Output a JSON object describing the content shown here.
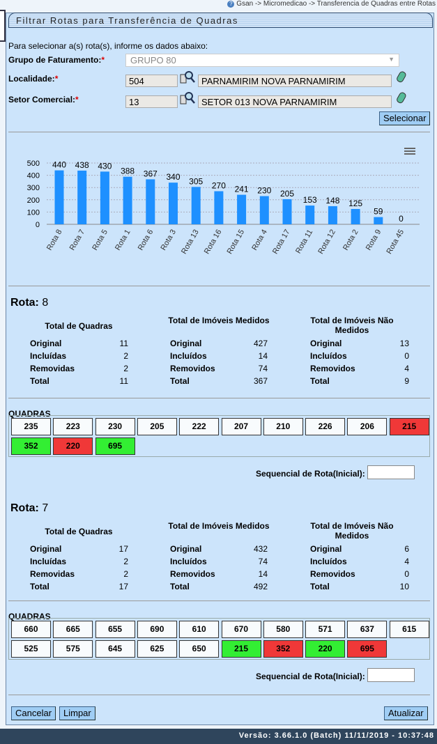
{
  "breadcrumb": "Gsan -> Micromedicao -> Transferencia de Quadras entre Rotas",
  "title": "Filtrar Rotas para Transferência de Quadras",
  "instructions": "Para selecionar a(s) rota(s), informe os dados abaixo:",
  "form": {
    "grupo_label": "Grupo de Faturamento:",
    "grupo_value": "GRUPO 80",
    "localidade_label": "Localidade:",
    "localidade_code": "504",
    "localidade_name": "PARNAMIRIM NOVA PARNAMIRIM",
    "setor_label": "Setor Comercial:",
    "setor_code": "13",
    "setor_name": "SETOR 013 NOVA PARNAMIRIM",
    "required_mark": "*",
    "select_button": "Selecionar"
  },
  "chart_data": {
    "type": "bar",
    "color": "#1e90ff",
    "categories": [
      "Rota 8",
      "Rota 7",
      "Rota 5",
      "Rota 1",
      "Rota 6",
      "Rota 3",
      "Rota 13",
      "Rota 16",
      "Rota 15",
      "Rota 4",
      "Rota 17",
      "Rota 11",
      "Rota 12",
      "Rota 2",
      "Rota 9",
      "Rota 45"
    ],
    "values": [
      440,
      438,
      430,
      388,
      367,
      340,
      305,
      270,
      241,
      230,
      205,
      153,
      148,
      125,
      59,
      0
    ],
    "yticks": [
      0,
      100,
      200,
      300,
      400,
      500
    ],
    "ylim": [
      0,
      500
    ],
    "grid": true,
    "menu_icon": "hamburger-icon"
  },
  "labels": {
    "rota": "Rota:",
    "total_quadras": "Total de Quadras",
    "imoveis_medidos": "Total de Imóveis Medidos",
    "imoveis_nao_medidos": "Total de Imóveis Não Medidos",
    "quadras": "QUADRAS",
    "sequencial": "Sequencial de Rota(Inicial):"
  },
  "rotas": [
    {
      "numero": "8",
      "stats": [
        [
          [
            "Original",
            "11"
          ],
          [
            "Incluídas",
            "2"
          ],
          [
            "Removidas",
            "2"
          ],
          [
            "Total",
            "11"
          ]
        ],
        [
          [
            "Original",
            "427"
          ],
          [
            "Incluídos",
            "14"
          ],
          [
            "Removidos",
            "74"
          ],
          [
            "Total",
            "367"
          ]
        ],
        [
          [
            "Original",
            "13"
          ],
          [
            "Incluídos",
            "0"
          ],
          [
            "Removidos",
            "4"
          ],
          [
            "Total",
            "9"
          ]
        ]
      ],
      "quadras": [
        [
          "235",
          "normal"
        ],
        [
          "223",
          "normal"
        ],
        [
          "230",
          "normal"
        ],
        [
          "205",
          "normal"
        ],
        [
          "222",
          "normal"
        ],
        [
          "207",
          "normal"
        ],
        [
          "210",
          "normal"
        ],
        [
          "226",
          "normal"
        ],
        [
          "206",
          "normal"
        ],
        [
          "215",
          "red"
        ],
        [
          "352",
          "green"
        ],
        [
          "220",
          "red"
        ],
        [
          "695",
          "green"
        ]
      ],
      "sequencial": ""
    },
    {
      "numero": "7",
      "stats": [
        [
          [
            "Original",
            "17"
          ],
          [
            "Incluídas",
            "2"
          ],
          [
            "Removidas",
            "2"
          ],
          [
            "Total",
            "17"
          ]
        ],
        [
          [
            "Original",
            "432"
          ],
          [
            "Incluídos",
            "74"
          ],
          [
            "Removidos",
            "14"
          ],
          [
            "Total",
            "492"
          ]
        ],
        [
          [
            "Original",
            "6"
          ],
          [
            "Incluídos",
            "4"
          ],
          [
            "Removidos",
            "0"
          ],
          [
            "Total",
            "10"
          ]
        ]
      ],
      "quadras": [
        [
          "660",
          "normal"
        ],
        [
          "665",
          "normal"
        ],
        [
          "655",
          "normal"
        ],
        [
          "690",
          "normal"
        ],
        [
          "610",
          "normal"
        ],
        [
          "670",
          "normal"
        ],
        [
          "580",
          "normal"
        ],
        [
          "571",
          "normal"
        ],
        [
          "637",
          "normal"
        ],
        [
          "615",
          "normal"
        ],
        [
          "525",
          "normal"
        ],
        [
          "575",
          "normal"
        ],
        [
          "645",
          "normal"
        ],
        [
          "625",
          "normal"
        ],
        [
          "650",
          "normal"
        ],
        [
          "215",
          "green"
        ],
        [
          "352",
          "red"
        ],
        [
          "220",
          "green"
        ],
        [
          "695",
          "red"
        ]
      ],
      "sequencial": ""
    }
  ],
  "buttons": {
    "cancelar": "Cancelar",
    "limpar": "Limpar",
    "atualizar": "Atualizar"
  },
  "footer": "Versão: 3.66.1.0 (Batch) 11/11/2019 - 10:37:48"
}
